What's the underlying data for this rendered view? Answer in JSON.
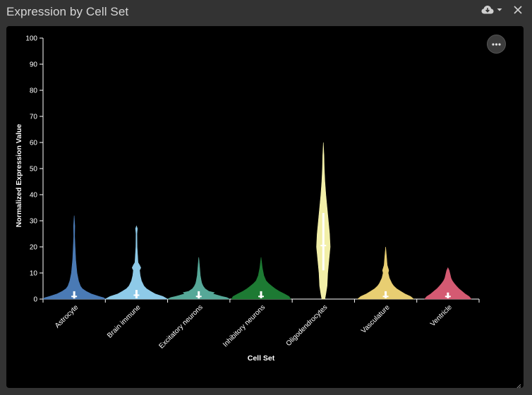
{
  "window": {
    "title": "Expression by Cell Set"
  },
  "controls": {
    "download_icon": "cloud-download-icon",
    "dropdown_icon": "caret-down-icon",
    "close_icon": "close-icon",
    "more_icon": "more-horizontal-icon"
  },
  "chart_data": {
    "type": "violin",
    "xlabel": "Cell Set",
    "ylabel": "Normalized Expression Value",
    "ylim": [
      0,
      100
    ],
    "yticks": [
      0,
      10,
      20,
      30,
      40,
      50,
      60,
      70,
      80,
      90,
      100
    ],
    "grid": false,
    "categories": [
      "Astrocyte",
      "Brain immune",
      "Excitatory neurons",
      "Inhibitory neurons",
      "Oligodendrocytes",
      "Vasculature",
      "Ventricle"
    ],
    "series": [
      {
        "category": "Astrocyte",
        "color": "#4a7ab5",
        "max": 32,
        "median": 1,
        "q1": 0.2,
        "q3": 3,
        "profile": [
          [
            0,
            1.0
          ],
          [
            0.5,
            0.95
          ],
          [
            1,
            0.8
          ],
          [
            2,
            0.55
          ],
          [
            3,
            0.38
          ],
          [
            4,
            0.26
          ],
          [
            5,
            0.2
          ],
          [
            7,
            0.14
          ],
          [
            10,
            0.09
          ],
          [
            15,
            0.05
          ],
          [
            20,
            0.03
          ],
          [
            24,
            0.015
          ],
          [
            28,
            0.02
          ],
          [
            32,
            0
          ]
        ]
      },
      {
        "category": "Brain immune",
        "color": "#8ecae8",
        "max": 28,
        "median": 1.5,
        "q1": 0.3,
        "q3": 3.5,
        "profile": [
          [
            0,
            1.0
          ],
          [
            1,
            0.85
          ],
          [
            2,
            0.6
          ],
          [
            3,
            0.45
          ],
          [
            4,
            0.32
          ],
          [
            5,
            0.24
          ],
          [
            7,
            0.16
          ],
          [
            9,
            0.12
          ],
          [
            11,
            0.1
          ],
          [
            12,
            0.14
          ],
          [
            13,
            0.1
          ],
          [
            14,
            0.05
          ],
          [
            20,
            0.02
          ],
          [
            25,
            0.015
          ],
          [
            27,
            0.03
          ],
          [
            28,
            0
          ]
        ]
      },
      {
        "category": "Excitatory neurons",
        "color": "#56a898",
        "max": 16,
        "median": 1,
        "q1": 0.2,
        "q3": 3,
        "profile": [
          [
            0,
            1.0
          ],
          [
            0.6,
            0.9
          ],
          [
            1,
            0.75
          ],
          [
            1.5,
            0.6
          ],
          [
            2,
            0.45
          ],
          [
            2.5,
            0.5
          ],
          [
            3,
            0.32
          ],
          [
            4,
            0.2
          ],
          [
            5,
            0.14
          ],
          [
            6,
            0.1
          ],
          [
            7,
            0.08
          ],
          [
            9,
            0.05
          ],
          [
            12,
            0.03
          ],
          [
            16,
            0
          ]
        ]
      },
      {
        "category": "Inhibitory neurons",
        "color": "#1d7a33",
        "max": 16,
        "median": 1,
        "q1": 0.3,
        "q3": 3,
        "profile": [
          [
            0,
            0.95
          ],
          [
            1,
            0.9
          ],
          [
            2,
            0.75
          ],
          [
            3,
            0.58
          ],
          [
            4,
            0.45
          ],
          [
            5,
            0.34
          ],
          [
            6,
            0.24
          ],
          [
            7,
            0.16
          ],
          [
            9,
            0.09
          ],
          [
            12,
            0.04
          ],
          [
            16,
            0
          ]
        ]
      },
      {
        "category": "Oligodendrocytes",
        "color": "#f2efa8",
        "max": 60,
        "median": 20.5,
        "q1": 11,
        "q3": 33,
        "profile": [
          [
            0,
            0.05
          ],
          [
            2,
            0.08
          ],
          [
            5,
            0.12
          ],
          [
            10,
            0.14
          ],
          [
            15,
            0.18
          ],
          [
            20,
            0.22
          ],
          [
            25,
            0.2
          ],
          [
            30,
            0.16
          ],
          [
            35,
            0.12
          ],
          [
            40,
            0.08
          ],
          [
            45,
            0.05
          ],
          [
            50,
            0.03
          ],
          [
            55,
            0.02
          ],
          [
            60,
            0
          ]
        ]
      },
      {
        "category": "Vasculature",
        "color": "#e8ce72",
        "max": 20,
        "median": 1,
        "q1": 0.3,
        "q3": 3,
        "profile": [
          [
            0,
            0.9
          ],
          [
            1,
            0.8
          ],
          [
            2,
            0.62
          ],
          [
            3,
            0.48
          ],
          [
            4,
            0.35
          ],
          [
            5,
            0.26
          ],
          [
            6,
            0.2
          ],
          [
            8,
            0.12
          ],
          [
            10,
            0.08
          ],
          [
            11,
            0.1
          ],
          [
            13,
            0.05
          ],
          [
            16,
            0.03
          ],
          [
            20,
            0
          ]
        ]
      },
      {
        "category": "Ventricle",
        "color": "#d45a72",
        "max": 12,
        "median": 1,
        "q1": 0.3,
        "q3": 2.5,
        "profile": [
          [
            0,
            0.75
          ],
          [
            1,
            0.68
          ],
          [
            2,
            0.55
          ],
          [
            3,
            0.45
          ],
          [
            4,
            0.35
          ],
          [
            5,
            0.27
          ],
          [
            6,
            0.2
          ],
          [
            7,
            0.14
          ],
          [
            8,
            0.1
          ],
          [
            9,
            0.08
          ],
          [
            10,
            0.06
          ],
          [
            11,
            0.04
          ],
          [
            12,
            0
          ]
        ]
      }
    ]
  }
}
